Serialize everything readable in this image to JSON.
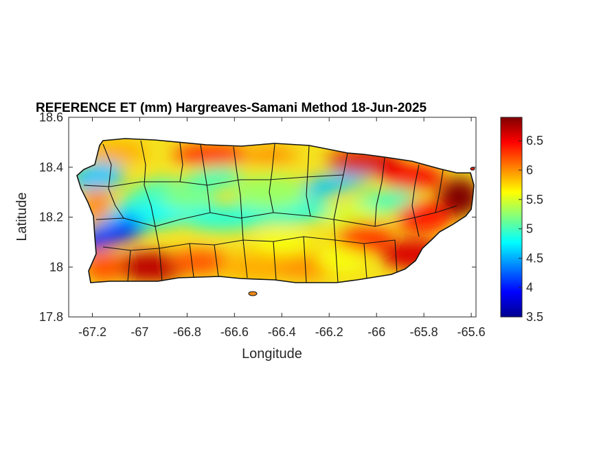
{
  "title": "REFERENCE ET (mm) Hargreaves-Samani Method  18-Jun-2025",
  "xlabel": "Longitude",
  "ylabel": "Latitude",
  "x_ticks": [
    "-67.2",
    "-67",
    "-66.8",
    "-66.6",
    "-66.4",
    "-66.2",
    "-66",
    "-65.8",
    "-65.6"
  ],
  "y_ticks": [
    "18.6",
    "18.4",
    "18.2",
    "18",
    "17.8"
  ],
  "colorbar_ticks": [
    "6.5",
    "6",
    "5.5",
    "5",
    "4.5",
    "4",
    "3.5"
  ],
  "colormap": "jet",
  "chart_data": {
    "type": "heatmap",
    "title": "REFERENCE ET (mm) Hargreaves-Samani Method  18-Jun-2025",
    "xlabel": "Longitude",
    "ylabel": "Latitude",
    "xlim": [
      -67.3,
      -65.58
    ],
    "ylim": [
      17.8,
      18.6
    ],
    "clim": [
      3.5,
      6.9
    ],
    "x_tick_values": [
      -67.2,
      -67,
      -66.8,
      -66.6,
      -66.4,
      -66.2,
      -66,
      -65.8,
      -65.6
    ],
    "y_tick_values": [
      18.6,
      18.4,
      18.2,
      18,
      17.8
    ],
    "colorbar_tick_values": [
      6.5,
      6,
      5.5,
      5,
      4.5,
      4,
      3.5
    ],
    "approx_zones": [
      {
        "lon": -67.15,
        "lat": 18.12,
        "value": 4.2
      },
      {
        "lon": -67.05,
        "lat": 18.15,
        "value": 4.0
      },
      {
        "lon": -66.75,
        "lat": 18.2,
        "value": 4.7
      },
      {
        "lon": -66.5,
        "lat": 18.18,
        "value": 4.8
      },
      {
        "lon": -66.15,
        "lat": 18.32,
        "value": 4.6
      },
      {
        "lon": -66.95,
        "lat": 17.98,
        "value": 6.6
      },
      {
        "lon": -66.65,
        "lat": 18.45,
        "value": 6.4
      },
      {
        "lon": -65.95,
        "lat": 18.4,
        "value": 6.7
      },
      {
        "lon": -65.65,
        "lat": 18.27,
        "value": 6.9
      },
      {
        "lon": -65.85,
        "lat": 18.05,
        "value": 6.6
      },
      {
        "lon": -66.4,
        "lat": 18.0,
        "value": 5.8
      }
    ]
  }
}
